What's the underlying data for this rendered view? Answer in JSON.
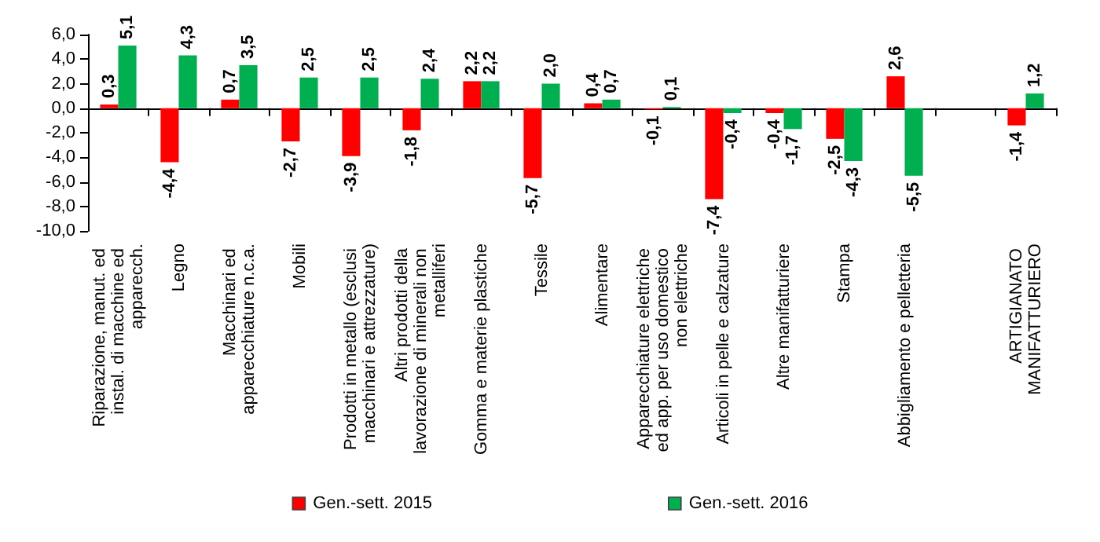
{
  "chart_data": {
    "type": "bar",
    "categories": [
      "Riparazione, manut. ed instal. di macchine ed apparecch.",
      "Legno",
      "Macchinari ed apparecchiature n.c.a.",
      "Mobili",
      "Prodotti in metallo (esclusi macchinari e attrezzature)",
      "Altri prodotti della lavorazione di minerali non metalliferi",
      "Gomma e materie plastiche",
      "Tessile",
      "Alimentare",
      "Apparecchiature elettriche ed app. per uso domestico non elettriche",
      "Articoli in pelle e calzature",
      "Altre manifatturiere",
      "Stampa",
      "Abbigliamento e pelletteria",
      null,
      "ARTIGIANATO MANIFATTURIERO"
    ],
    "series": [
      {
        "name": "Gen.-sett. 2015",
        "color": "#ff0000",
        "values": [
          0.3,
          -4.4,
          0.7,
          -2.7,
          -3.9,
          -1.8,
          2.2,
          -5.7,
          0.4,
          -0.1,
          -7.4,
          -0.4,
          -2.5,
          2.6,
          null,
          -1.4
        ],
        "value_labels": [
          "0,3",
          "-4,4",
          "0,7",
          "-2,7",
          "-3,9",
          "-1,8",
          "2,2",
          "-5,7",
          "0,4",
          "-0,1",
          "-7,4",
          "-0,4",
          "-2,5",
          "2,6",
          null,
          "-1,4"
        ]
      },
      {
        "name": "Gen.-sett. 2016",
        "color": "#00b050",
        "values": [
          5.1,
          4.3,
          3.5,
          2.5,
          2.5,
          2.4,
          2.2,
          2.0,
          0.7,
          0.1,
          -0.4,
          -1.7,
          -4.3,
          -5.5,
          null,
          1.2
        ],
        "value_labels": [
          "5,1",
          "4,3",
          "3,5",
          "2,5",
          "2,5",
          "2,4",
          "2,2",
          "2,0",
          "0,7",
          "0,1",
          "-0,4",
          "-1,7",
          "-4,3",
          "-5,5",
          null,
          "1,2"
        ]
      }
    ],
    "ylim": [
      -10,
      6
    ],
    "yticks": [
      {
        "value": -10,
        "label": "-10,0"
      },
      {
        "value": -8,
        "label": "-8,0"
      },
      {
        "value": -6,
        "label": "-6,0"
      },
      {
        "value": -4,
        "label": "-4,0"
      },
      {
        "value": -2,
        "label": "-2,0"
      },
      {
        "value": 0,
        "label": "0,0"
      },
      {
        "value": 2,
        "label": "2,0"
      },
      {
        "value": 4,
        "label": "4,0"
      },
      {
        "value": 6,
        "label": "6,0"
      }
    ],
    "legend": "bottom"
  }
}
